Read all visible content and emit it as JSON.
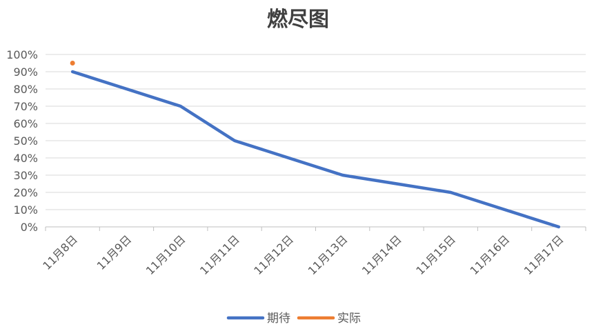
{
  "chart_data": {
    "type": "line",
    "title": "燃尽图",
    "categories": [
      "11月8日",
      "11月9日",
      "11月10日",
      "11月11日",
      "11月12日",
      "11月13日",
      "11月14日",
      "11月15日",
      "11月16日",
      "11月17日"
    ],
    "y_ticks": [
      "0%",
      "10%",
      "20%",
      "30%",
      "40%",
      "50%",
      "60%",
      "70%",
      "80%",
      "90%",
      "100%"
    ],
    "ylim": [
      0,
      1
    ],
    "grid": true,
    "legend": "bottom",
    "series": [
      {
        "name": "期待",
        "color": "#4472C4",
        "values": [
          0.9,
          0.8,
          0.7,
          0.5,
          0.4,
          0.3,
          0.25,
          0.2,
          0.1,
          0.0
        ]
      },
      {
        "name": "实际",
        "color": "#ED7D31",
        "values": [
          0.95,
          null,
          null,
          null,
          null,
          null,
          null,
          null,
          null,
          null
        ]
      }
    ]
  }
}
